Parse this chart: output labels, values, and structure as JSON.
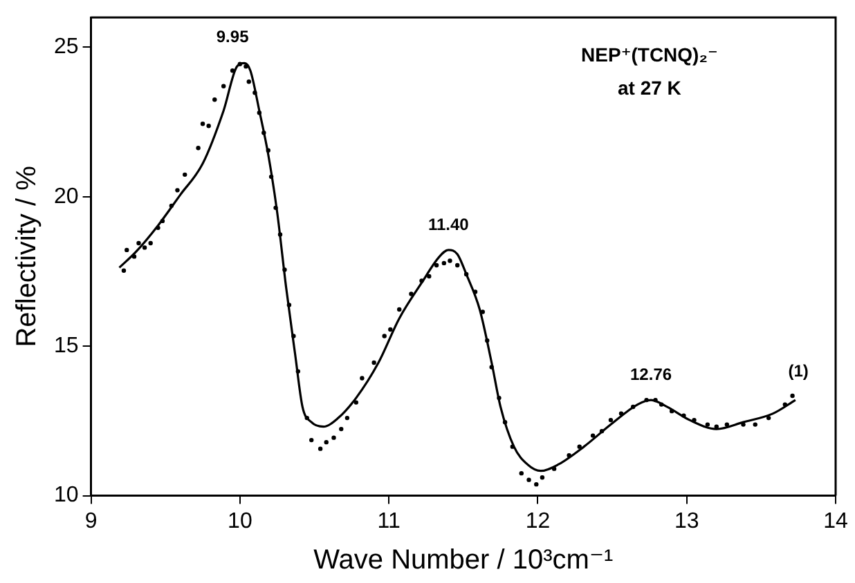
{
  "chart_data": {
    "type": "line",
    "xlabel": "Wave Number / 10³cm⁻¹",
    "ylabel": "Reflectivity / %",
    "xlim": [
      9,
      14
    ],
    "xticks": [
      9,
      10,
      11,
      12,
      13,
      14
    ],
    "ylim": [
      10,
      26
    ],
    "yticks": [
      10,
      15,
      20,
      25
    ],
    "grid": false,
    "legend": false,
    "annotations": [
      {
        "text": "9.95",
        "x": 9.95,
        "y": 24.5
      },
      {
        "text": "11.40",
        "x": 11.4,
        "y": 18.2
      },
      {
        "text": "12.76",
        "x": 12.76,
        "y": 13.2
      },
      {
        "text": "(1)",
        "x": 13.75,
        "y": 13.3
      },
      "NEP⁺(TCNQ)₂⁻",
      "at 27 K"
    ],
    "series": [
      {
        "color": "#000000",
        "marker": "none",
        "line_style": "solid",
        "x": [
          9.19,
          9.3,
          9.45,
          9.6,
          9.75,
          9.89,
          9.98,
          10.03,
          10.07,
          10.13,
          10.19,
          10.25,
          10.31,
          10.37,
          10.42,
          10.48,
          10.56,
          10.66,
          10.78,
          10.93,
          11.07,
          11.22,
          11.34,
          11.4,
          11.46,
          11.52,
          11.61,
          11.69,
          11.75,
          11.84,
          11.93,
          12.02,
          12.14,
          12.31,
          12.49,
          12.67,
          12.76,
          12.87,
          13.02,
          13.2,
          13.38,
          13.58,
          13.73
        ],
        "values": [
          17.63,
          18.15,
          19.04,
          20.07,
          21.11,
          22.88,
          24.36,
          24.47,
          24.22,
          22.88,
          21.41,
          19.48,
          16.97,
          14.75,
          12.97,
          12.46,
          12.31,
          12.6,
          13.27,
          14.45,
          15.93,
          17.12,
          18.0,
          18.22,
          18.08,
          17.41,
          16.23,
          14.45,
          12.97,
          11.64,
          11.05,
          10.83,
          11.05,
          11.64,
          12.38,
          13.05,
          13.2,
          12.97,
          12.53,
          12.23,
          12.46,
          12.75,
          13.2
        ]
      },
      {
        "type": "scatter",
        "color": "#000000",
        "marker": "circle",
        "x": [
          9.22,
          9.24,
          9.29,
          9.32,
          9.36,
          9.4,
          9.45,
          9.48,
          9.54,
          9.58,
          9.63,
          9.72,
          9.75,
          9.79,
          9.83,
          9.89,
          9.95,
          10.0,
          10.04,
          10.06,
          10.1,
          10.13,
          10.16,
          10.19,
          10.21,
          10.24,
          10.27,
          10.3,
          10.33,
          10.36,
          10.39,
          10.45,
          10.48,
          10.54,
          10.58,
          10.63,
          10.68,
          10.72,
          10.78,
          10.82,
          10.9,
          10.97,
          11.01,
          11.07,
          11.15,
          11.22,
          11.27,
          11.32,
          11.37,
          11.41,
          11.46,
          11.52,
          11.58,
          11.63,
          11.66,
          11.69,
          11.74,
          11.78,
          11.83,
          11.89,
          11.94,
          11.99,
          12.03,
          12.11,
          12.21,
          12.28,
          12.37,
          12.43,
          12.49,
          12.56,
          12.64,
          12.73,
          12.79,
          12.83,
          12.9,
          12.98,
          13.05,
          13.14,
          13.2,
          13.27,
          13.38,
          13.46,
          13.55,
          13.66,
          13.71
        ],
        "values": [
          17.53,
          18.22,
          18.0,
          18.45,
          18.3,
          18.45,
          18.96,
          19.19,
          19.7,
          20.22,
          20.74,
          21.63,
          22.44,
          22.37,
          23.25,
          23.7,
          24.22,
          24.44,
          24.36,
          23.85,
          23.48,
          22.81,
          22.14,
          21.55,
          20.67,
          19.63,
          18.74,
          17.56,
          16.38,
          15.34,
          14.16,
          12.6,
          11.86,
          11.57,
          11.79,
          11.94,
          12.23,
          12.6,
          13.12,
          13.93,
          14.45,
          15.34,
          15.56,
          16.23,
          16.75,
          17.19,
          17.34,
          17.71,
          17.78,
          17.86,
          17.71,
          17.41,
          16.82,
          16.15,
          15.19,
          14.3,
          13.27,
          12.46,
          11.64,
          10.75,
          10.53,
          10.38,
          10.61,
          10.9,
          11.35,
          11.64,
          12.01,
          12.16,
          12.53,
          12.75,
          12.97,
          13.2,
          13.2,
          13.05,
          12.83,
          12.68,
          12.53,
          12.38,
          12.31,
          12.38,
          12.38,
          12.38,
          12.6,
          13.05,
          13.34
        ]
      }
    ]
  }
}
